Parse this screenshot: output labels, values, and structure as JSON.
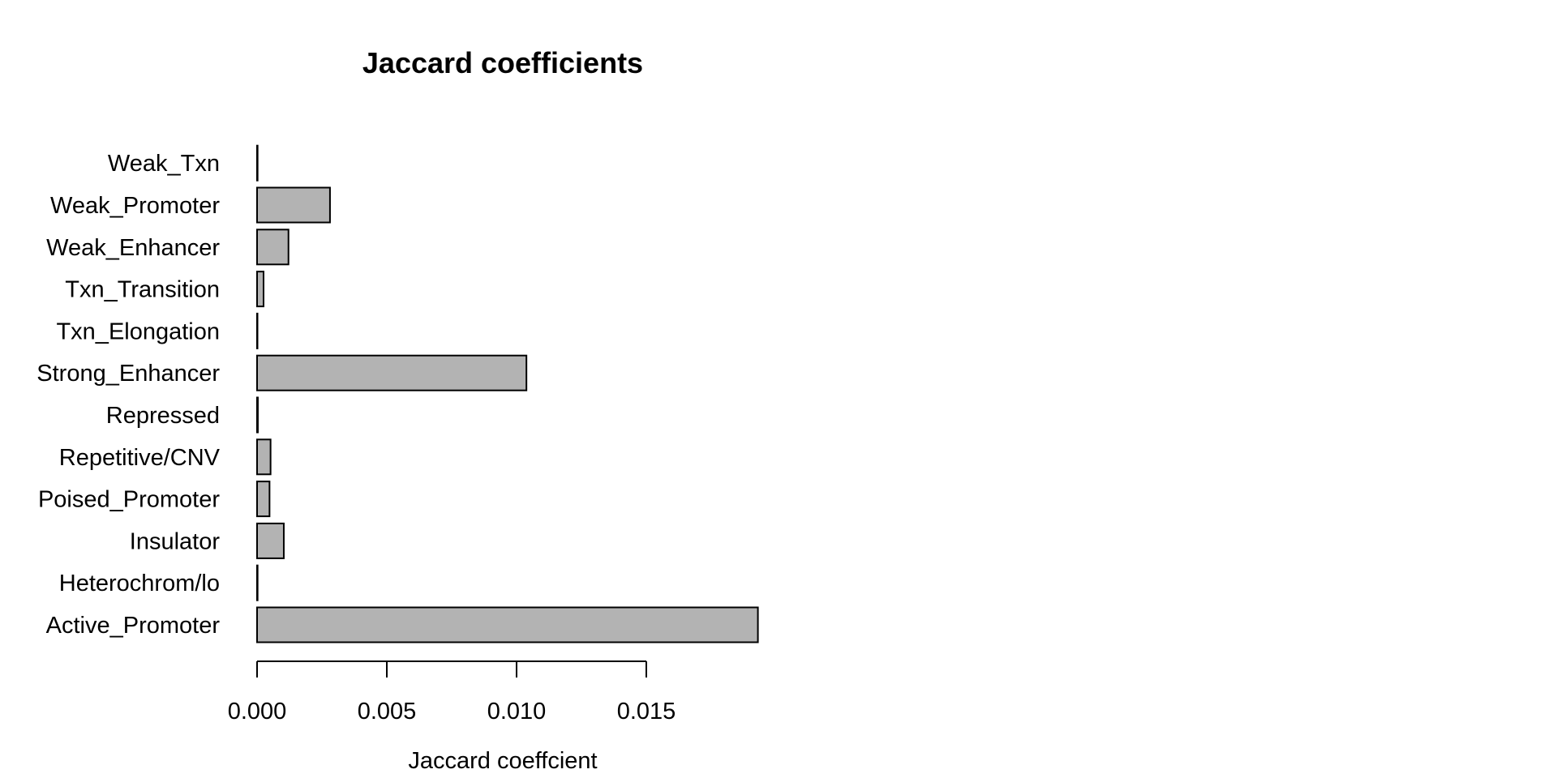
{
  "chart_data": {
    "type": "bar",
    "orientation": "horizontal",
    "title": "Jaccard coefficients",
    "xlabel": "Jaccard coeffcient",
    "ylabel": "",
    "categories": [
      "Active_Promoter",
      "Heterochrom/lo",
      "Insulator",
      "Poised_Promoter",
      "Repetitive/CNV",
      "Repressed",
      "Strong_Enhancer",
      "Txn_Elongation",
      "Txn_Transition",
      "Weak_Enhancer",
      "Weak_Promoter",
      "Weak_Txn"
    ],
    "values": [
      0.0193,
      2e-05,
      0.00103,
      0.00048,
      0.00052,
      3e-05,
      0.01038,
      1e-05,
      0.00025,
      0.00121,
      0.00281,
      2e-05
    ],
    "xticks": [
      0.0,
      0.005,
      0.01,
      0.015
    ],
    "xtick_labels": [
      "0.000",
      "0.005",
      "0.010",
      "0.015"
    ],
    "xlim": [
      0,
      0.0193
    ],
    "bar_color": "#b3b3b3",
    "grid": false,
    "legend": "none"
  }
}
